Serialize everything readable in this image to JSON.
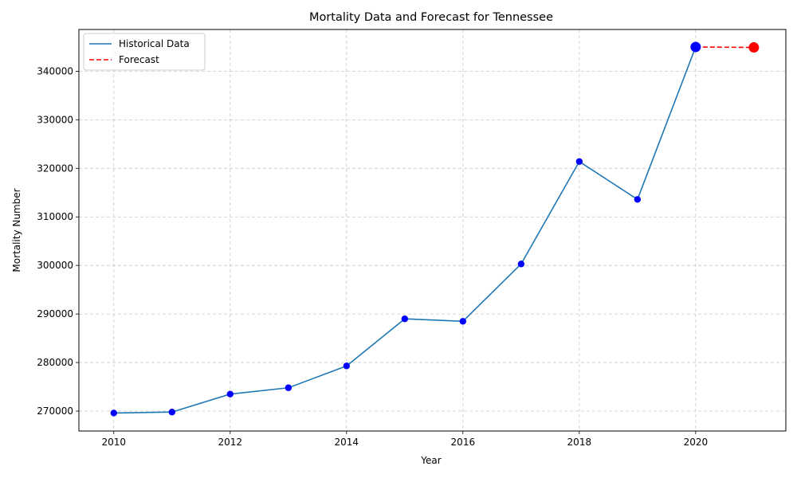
{
  "chart_data": {
    "type": "line",
    "title": "Mortality Data and Forecast for Tennessee",
    "xlabel": "Year",
    "ylabel": "Mortality Number",
    "xlim": [
      2009.4,
      2021.55
    ],
    "ylim": [
      265900,
      348600
    ],
    "xticks": [
      2010,
      2012,
      2014,
      2016,
      2018,
      2020
    ],
    "yticks": [
      270000,
      280000,
      290000,
      300000,
      310000,
      320000,
      330000,
      340000
    ],
    "grid": true,
    "legend_position": "top-left",
    "series": [
      {
        "name": "Historical Data",
        "style": "solid",
        "color": "#1f77b4",
        "marker_color": "#0000ff",
        "x": [
          2010,
          2011,
          2012,
          2013,
          2014,
          2015,
          2016,
          2017,
          2018,
          2019,
          2020
        ],
        "y": [
          269600,
          269800,
          273500,
          274800,
          279300,
          289000,
          288500,
          300300,
          321400,
          313600,
          345000
        ]
      },
      {
        "name": "Forecast",
        "style": "dashed",
        "color": "#ff0000",
        "marker_color": "#ff0000",
        "x": [
          2020,
          2021
        ],
        "y": [
          345000,
          344900
        ]
      }
    ],
    "highlight_points": [
      {
        "x": 2020,
        "y": 345000,
        "color": "#0000ff"
      },
      {
        "x": 2021,
        "y": 344900,
        "color": "#ff0000"
      }
    ]
  }
}
